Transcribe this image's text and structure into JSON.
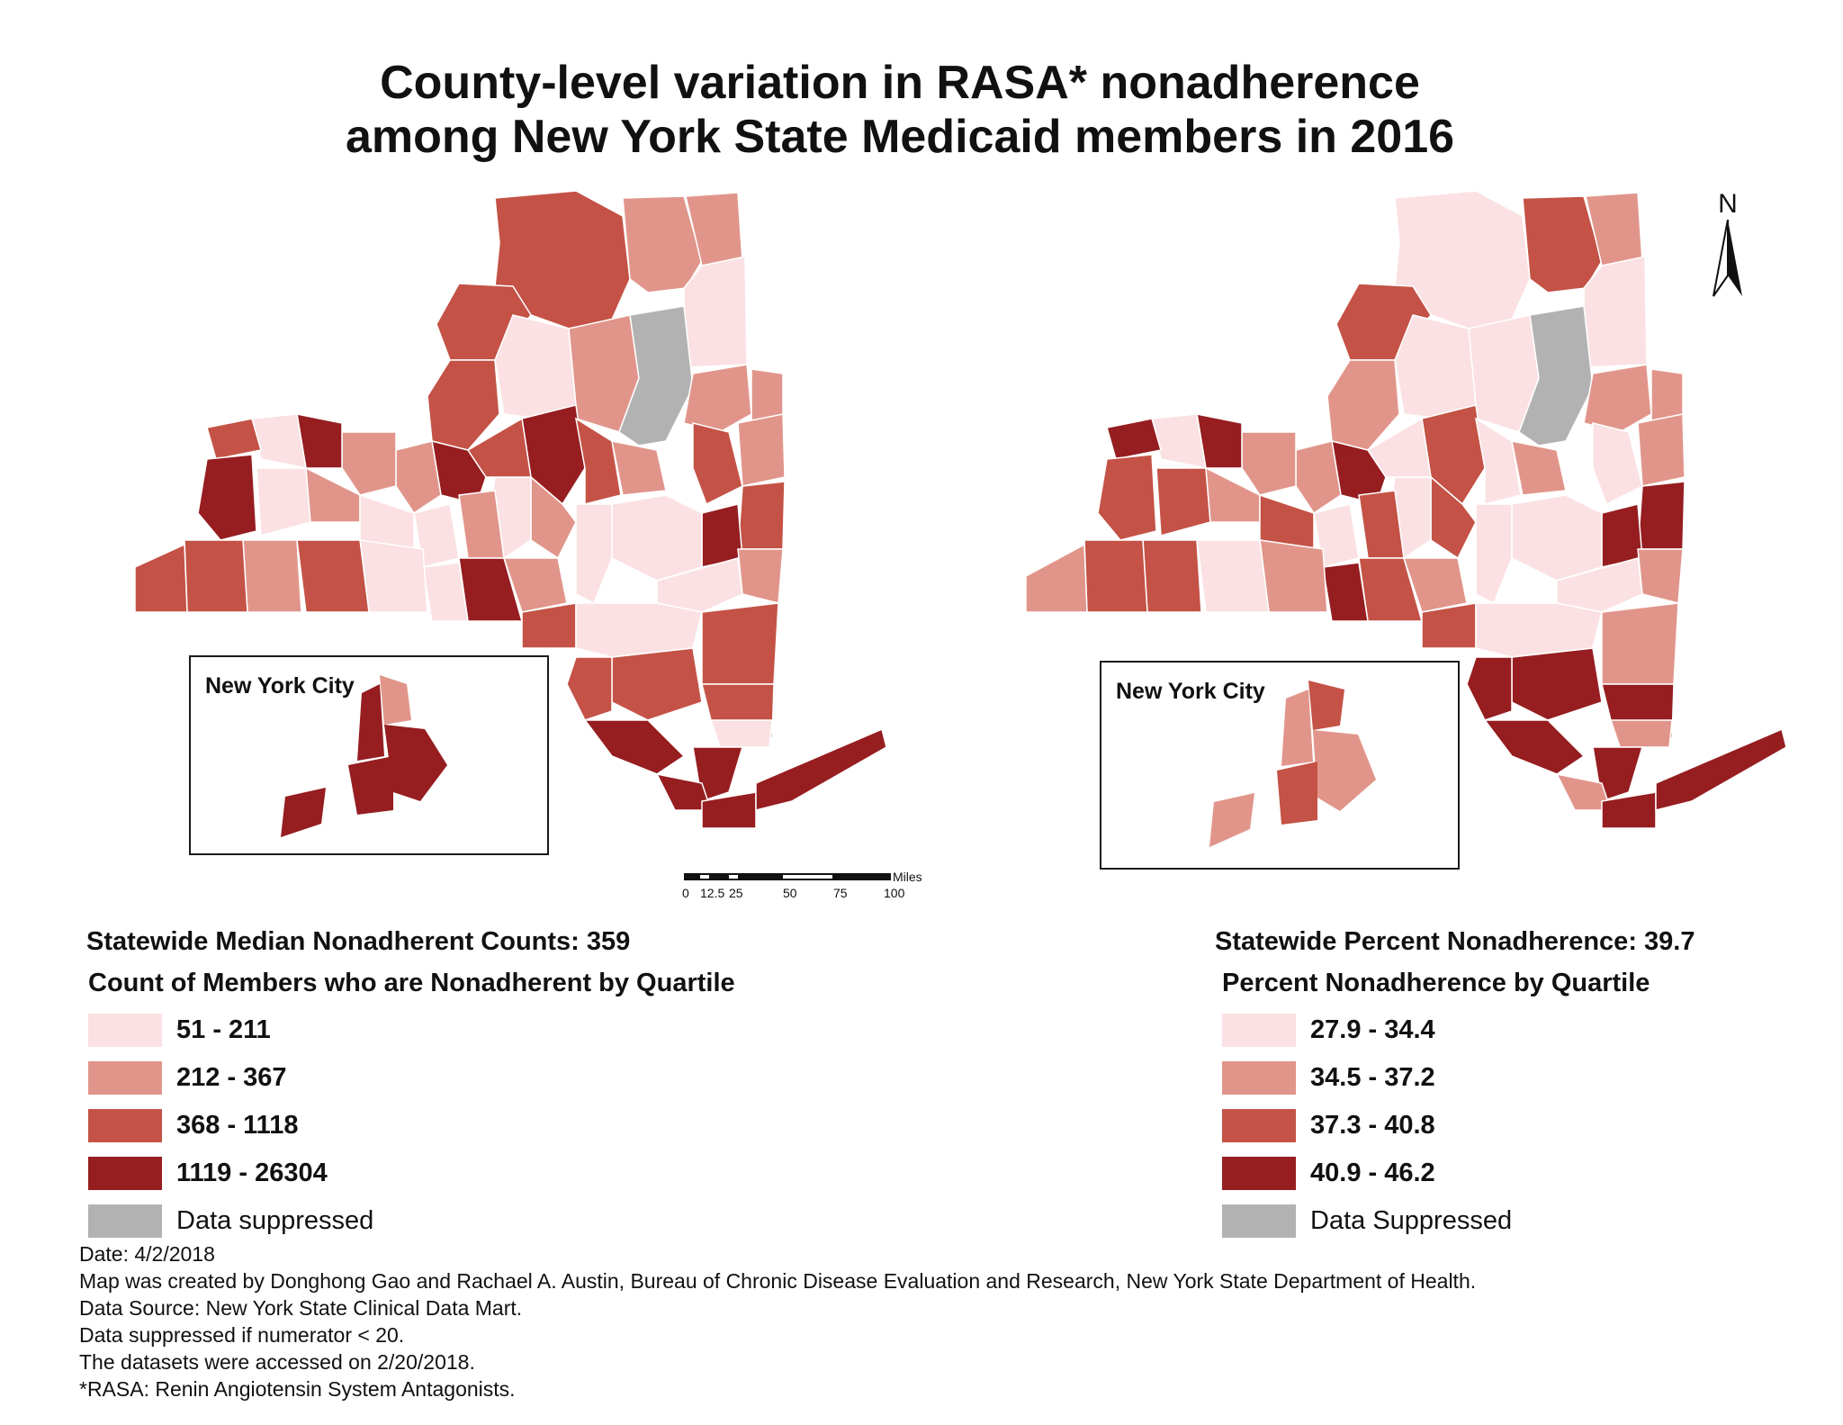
{
  "title": {
    "line1": "County-level variation in RASA* nonadherence",
    "line2": "among New York State Medicaid members in 2016"
  },
  "colors": {
    "q1": "#fbe1e3",
    "q2": "#e1958a",
    "q3": "#c45246",
    "q4": "#961d20",
    "suppressed": "#b2b2b2"
  },
  "left_map": {
    "inset_label": "New York City",
    "stat": "Statewide Median Nonadherent Counts: 359",
    "legend_title": "Count of Members who are Nonadherent by Quartile",
    "legend": [
      {
        "label": "51 - 211",
        "color_key": "q1"
      },
      {
        "label": "212 - 367",
        "color_key": "q2"
      },
      {
        "label": "368 - 1118",
        "color_key": "q3"
      },
      {
        "label": "1119 - 26304",
        "color_key": "q4"
      },
      {
        "label": "Data suppressed",
        "color_key": "suppressed"
      }
    ]
  },
  "right_map": {
    "inset_label": "New York City",
    "stat": "Statewide Percent Nonadherence: 39.7",
    "legend_title": "Percent Nonadherence by Quartile",
    "legend": [
      {
        "label": "27.9 - 34.4",
        "color_key": "q1"
      },
      {
        "label": "34.5 - 37.2",
        "color_key": "q2"
      },
      {
        "label": "37.3 - 40.8",
        "color_key": "q3"
      },
      {
        "label": "40.9 - 46.2",
        "color_key": "q4"
      },
      {
        "label": "Data Suppressed",
        "color_key": "suppressed"
      }
    ]
  },
  "north_arrow": "N",
  "scalebar": {
    "unit": "Miles",
    "ticks": [
      "0",
      "12.5",
      "25",
      "50",
      "75",
      "100"
    ]
  },
  "footnotes": [
    "Date: 4/2/2018",
    "Map was created by Donghong Gao and Rachael A. Austin, Bureau of Chronic Disease Evaluation and Research, New York State Department of Health.",
    "Data Source: New York State Clinical Data Mart.",
    "Data suppressed if numerator < 20.",
    "The datasets were accessed on 2/20/2018.",
    "*RASA: Renin Angiotensin System Antagonists."
  ]
}
